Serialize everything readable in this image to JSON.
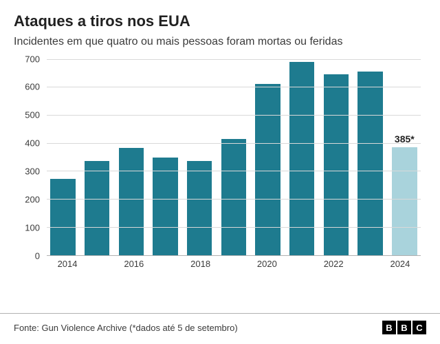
{
  "title": "Ataques a tiros nos EUA",
  "subtitle": "Incidentes em que quatro ou mais pessoas foram mortas ou feridas",
  "source": "Fonte: Gun Violence Archive (*dados até 5 de setembro)",
  "logo_letters": [
    "B",
    "B",
    "C"
  ],
  "chart": {
    "type": "bar",
    "ylim": [
      0,
      700
    ],
    "ytick_step": 100,
    "yticks": [
      0,
      100,
      200,
      300,
      400,
      500,
      600,
      700
    ],
    "categories": [
      "2014",
      "2015",
      "2016",
      "2017",
      "2018",
      "2019",
      "2020",
      "2021",
      "2022",
      "2023",
      "2024"
    ],
    "x_label_every": 2,
    "values": [
      272,
      335,
      383,
      348,
      336,
      415,
      610,
      690,
      646,
      656,
      385
    ],
    "bar_colors": [
      "#1e7b8f",
      "#1e7b8f",
      "#1e7b8f",
      "#1e7b8f",
      "#1e7b8f",
      "#1e7b8f",
      "#1e7b8f",
      "#1e7b8f",
      "#1e7b8f",
      "#1e7b8f",
      "#a9d3dc"
    ],
    "value_labels": [
      "",
      "",
      "",
      "",
      "",
      "",
      "",
      "",
      "",
      "",
      "385*"
    ],
    "background_color": "#ffffff",
    "grid_color": "#d9d9d9",
    "axis_color": "#b0b0b0",
    "title_fontsize": 22,
    "subtitle_fontsize": 16,
    "tick_fontsize": 13,
    "bar_gap_pct": 2.5
  }
}
